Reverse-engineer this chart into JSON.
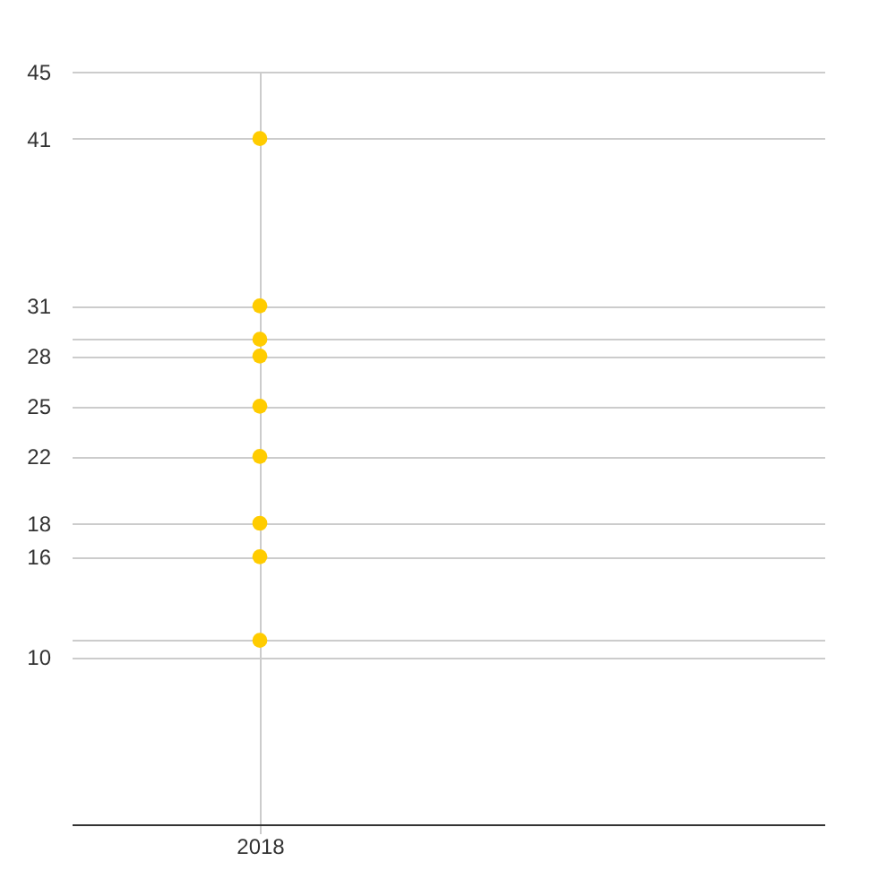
{
  "chart_data": {
    "type": "scatter",
    "categories": [
      "2018"
    ],
    "series": [
      {
        "color": "#ffcc00",
        "values": [
          41
        ]
      },
      {
        "color": "#ffcc00",
        "values": [
          31
        ]
      },
      {
        "color": "#ffcc00",
        "values": [
          29
        ]
      },
      {
        "color": "#ffcc00",
        "values": [
          28
        ]
      },
      {
        "color": "#ffcc00",
        "values": [
          25
        ]
      },
      {
        "color": "#ffcc00",
        "values": [
          22
        ]
      },
      {
        "color": "#ffcc00",
        "values": [
          18
        ]
      },
      {
        "color": "#ffcc00",
        "values": [
          16
        ]
      },
      {
        "color": "#ffcc00",
        "values": [
          11
        ]
      }
    ],
    "ylim": [
      0,
      45
    ],
    "yticks": [
      10,
      {
        "value": 11,
        "label": null
      },
      16,
      18,
      22,
      25,
      28,
      {
        "value": 29,
        "label": null
      },
      31,
      41,
      45
    ],
    "grid": true,
    "marker": "circle"
  }
}
